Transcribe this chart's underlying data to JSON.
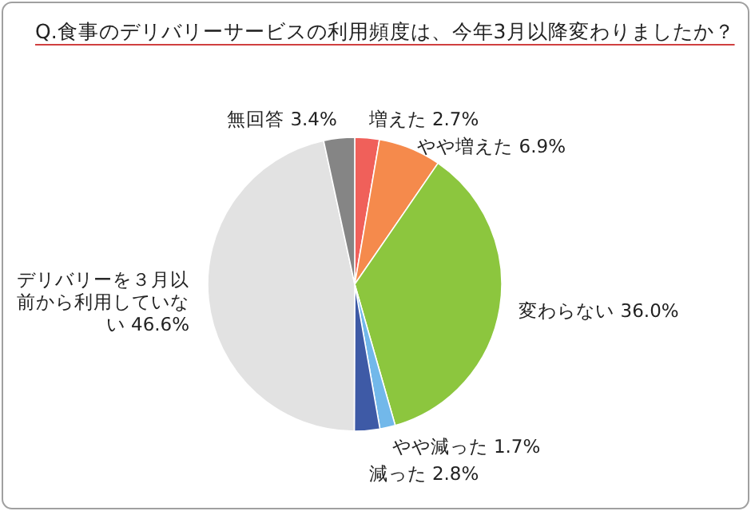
{
  "chart_data": {
    "type": "pie",
    "title": "Q.食事のデリバリーサービスの利用頻度は、今年3月以降変わりましたか？",
    "categories": [
      "増えた",
      "やや増えた",
      "変わらない",
      "やや減った",
      "減った",
      "デリバリーを３月以前から利用していない",
      "無回答"
    ],
    "values": [
      2.7,
      6.9,
      36.0,
      1.7,
      2.8,
      46.6,
      3.4
    ],
    "value_labels": [
      "2.7%",
      "6.9%",
      "36.0%",
      "1.7%",
      "2.8%",
      "46.6%",
      "3.4%"
    ],
    "colors": [
      "#f0605a",
      "#f58a4c",
      "#8cc63e",
      "#72b8ea",
      "#3e5aa6",
      "#e2e2e2",
      "#858585"
    ]
  }
}
